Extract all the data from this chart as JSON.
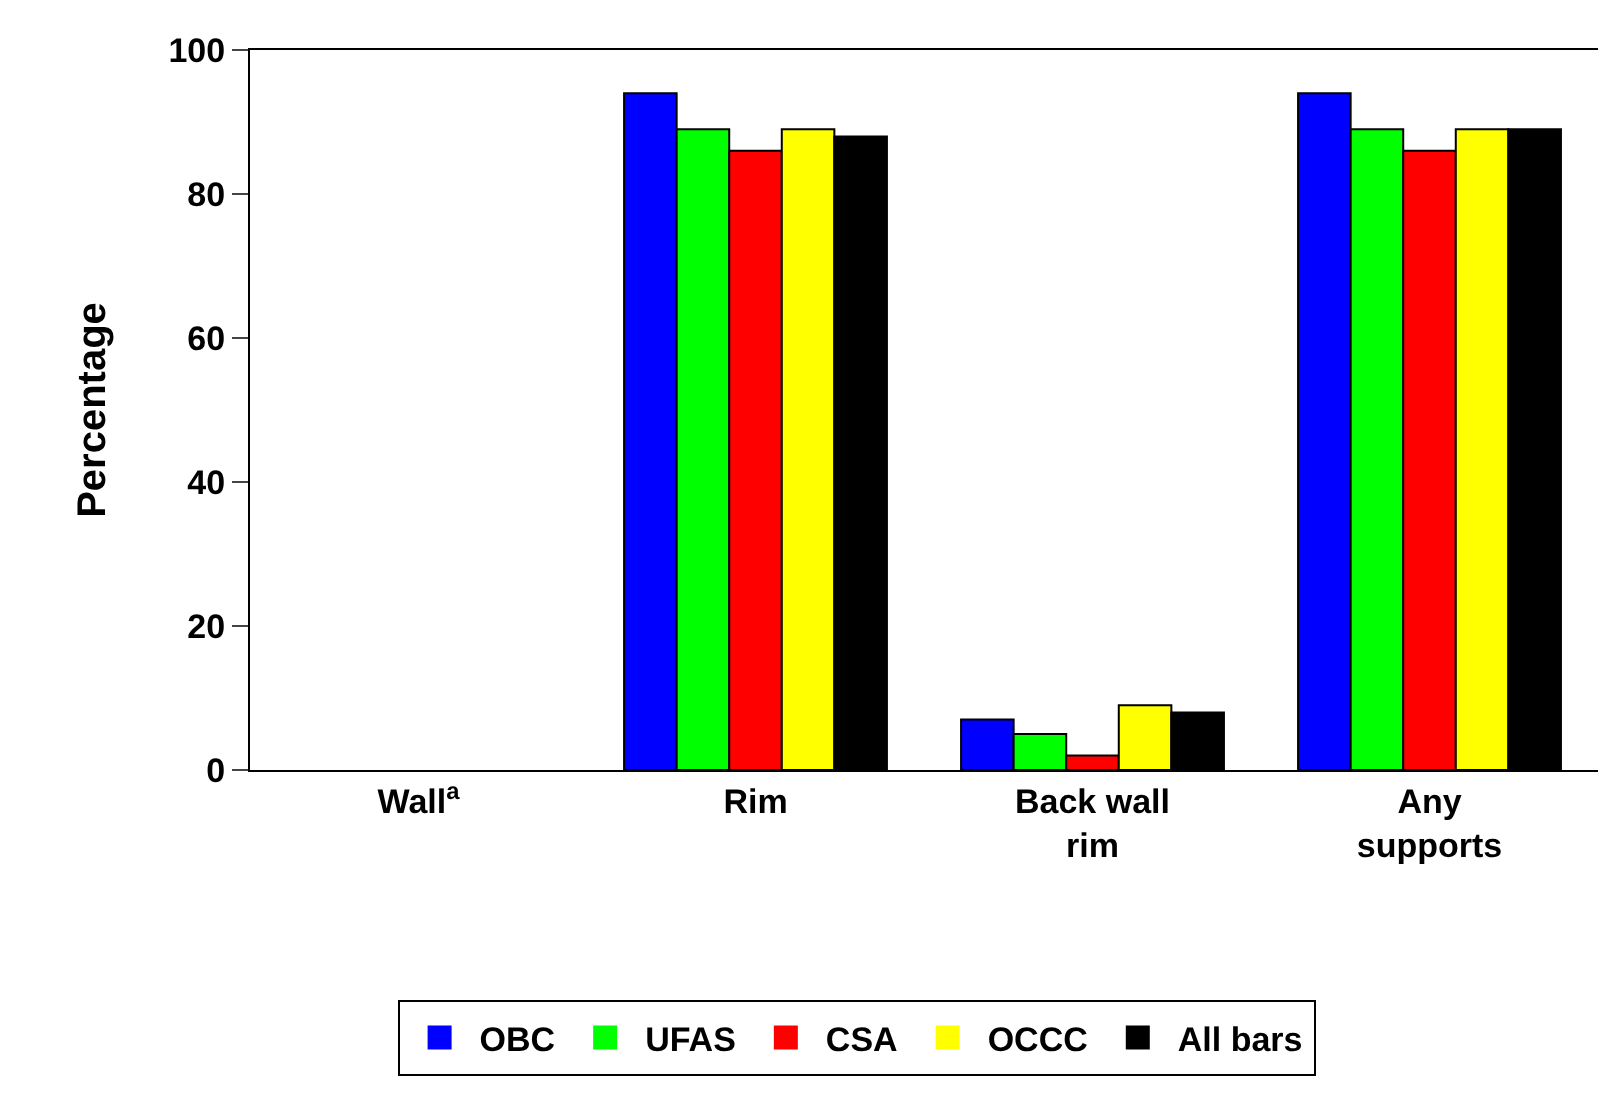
{
  "chart_data": {
    "type": "bar",
    "ylabel": "Percentage",
    "categories": [
      "Wall$^{a}$",
      "Rim",
      "Back wall rim",
      "Any supports"
    ],
    "series": [
      {
        "name": "OBC",
        "color": "#0000ff",
        "values": [
          0,
          94,
          7,
          94
        ]
      },
      {
        "name": "UFAS",
        "color": "#00ff00",
        "values": [
          0,
          89,
          5,
          89
        ]
      },
      {
        "name": "CSA",
        "color": "#ff0000",
        "values": [
          0,
          86,
          2,
          86
        ]
      },
      {
        "name": "OCCC",
        "color": "#ffff00",
        "values": [
          0,
          89,
          9,
          89
        ]
      },
      {
        "name": "All bars",
        "color": "#000000",
        "values": [
          0,
          88,
          8,
          89
        ]
      }
    ],
    "ylim": [
      0,
      100
    ],
    "yticks": [
      0,
      20,
      40,
      60,
      80,
      100
    ],
    "legend": "bottom"
  }
}
